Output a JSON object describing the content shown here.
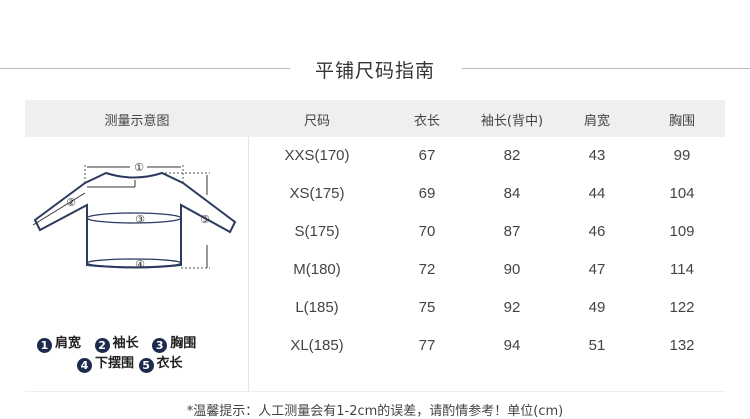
{
  "title": "平铺尺码指南",
  "headers": [
    "测量示意图",
    "尺码",
    "衣长",
    "袖长(背中)",
    "肩宽",
    "胸围"
  ],
  "rows": [
    [
      "XXS(170)",
      "67",
      "82",
      "43",
      "99"
    ],
    [
      "XS(175)",
      "69",
      "84",
      "44",
      "104"
    ],
    [
      "S(175)",
      "70",
      "87",
      "46",
      "109"
    ],
    [
      "M(180)",
      "72",
      "90",
      "47",
      "114"
    ],
    [
      "L(185)",
      "75",
      "92",
      "49",
      "122"
    ],
    [
      "XL(185)",
      "77",
      "94",
      "51",
      "132"
    ]
  ],
  "diagram": {
    "marks": [
      "①",
      "②",
      "③",
      "④",
      "⑤"
    ]
  },
  "legend": [
    {
      "n": "1",
      "label": "肩宽"
    },
    {
      "n": "2",
      "label": "袖长"
    },
    {
      "n": "3",
      "label": "胸围"
    },
    {
      "n": "4",
      "label": "下摆围"
    },
    {
      "n": "5",
      "label": "衣长"
    }
  ],
  "note": "*温馨提示：人工测量会有1-2cm的误差，请酌情参考！单位(cm)",
  "colors": {
    "accent": "#1d2b4f",
    "header_bg": "#efefef"
  }
}
